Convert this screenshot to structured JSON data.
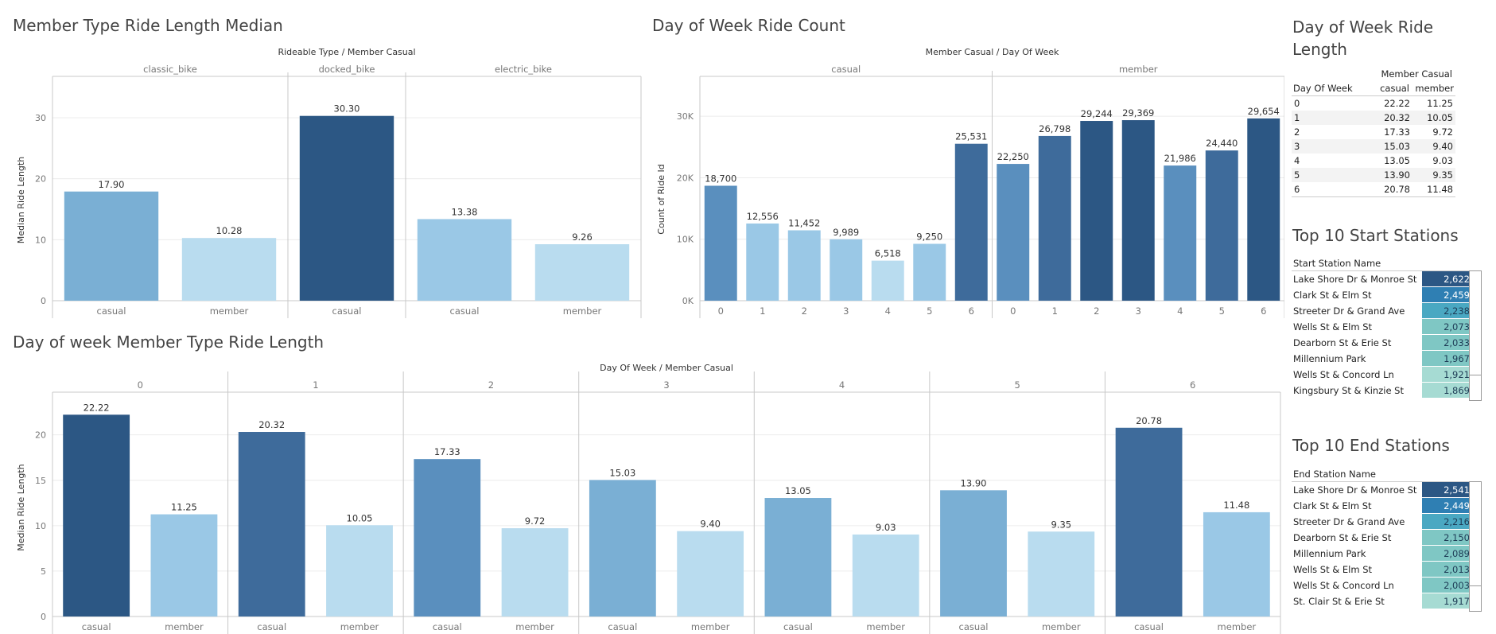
{
  "panels": {
    "member_type": {
      "title": "Member Type Ride Length Median"
    },
    "dow_count": {
      "title": "Day of Week Ride Count"
    },
    "dow_length": {
      "title": "Day of week Member Type Ride Length"
    },
    "dow_table": {
      "title": "Day of Week Ride Length"
    },
    "start_stations": {
      "title": "Top 10 Start Stations"
    },
    "end_stations": {
      "title": "Top 10 End Stations"
    }
  },
  "colors": {
    "ramp": [
      "#b9dcef",
      "#9ac8e6",
      "#7aafd4",
      "#5a8fbe",
      "#3e6b9b",
      "#2c5784"
    ],
    "teal_ramp": [
      "#a6dbd3",
      "#7fc7c4",
      "#4aa8c2",
      "#2f7fb3",
      "#2c5784"
    ],
    "gridline": "#ececec",
    "divider": "#c8c8c8"
  },
  "chart_data": [
    {
      "id": "member_type",
      "type": "bar",
      "title": "Member Type Ride Length Median",
      "column_header": "Rideable Type  /  Member Casual",
      "ylabel": "Median Ride Length",
      "ylim": [
        0,
        33
      ],
      "yticks": [
        0,
        10,
        20,
        30
      ],
      "yticklabels": [
        "0",
        "10",
        "20",
        "30"
      ],
      "groups": [
        {
          "name": "classic_bike",
          "bars": [
            {
              "category": "casual",
              "value": 17.9,
              "label": "17.90"
            },
            {
              "category": "member",
              "value": 10.28,
              "label": "10.28"
            }
          ]
        },
        {
          "name": "docked_bike",
          "bars": [
            {
              "category": "casual",
              "value": 30.3,
              "label": "30.30"
            }
          ]
        },
        {
          "name": "electric_bike",
          "bars": [
            {
              "category": "casual",
              "value": 13.38,
              "label": "13.38"
            },
            {
              "category": "member",
              "value": 9.26,
              "label": "9.26"
            }
          ]
        }
      ]
    },
    {
      "id": "dow_count",
      "type": "bar",
      "title": "Day of Week Ride Count",
      "column_header": "Member Casual  /  Day Of Week",
      "ylabel": "Count of Ride Id",
      "ylim": [
        0,
        33000
      ],
      "yticks": [
        0,
        10000,
        20000,
        30000
      ],
      "yticklabels": [
        "0K",
        "10K",
        "20K",
        "30K"
      ],
      "groups": [
        {
          "name": "casual",
          "bars": [
            {
              "category": "0",
              "value": 18700,
              "label": "18,700"
            },
            {
              "category": "1",
              "value": 12556,
              "label": "12,556"
            },
            {
              "category": "2",
              "value": 11452,
              "label": "11,452"
            },
            {
              "category": "3",
              "value": 9989,
              "label": "9,989"
            },
            {
              "category": "4",
              "value": 6518,
              "label": "6,518"
            },
            {
              "category": "5",
              "value": 9250,
              "label": "9,250"
            },
            {
              "category": "6",
              "value": 25531,
              "label": "25,531"
            }
          ]
        },
        {
          "name": "member",
          "bars": [
            {
              "category": "0",
              "value": 22250,
              "label": "22,250"
            },
            {
              "category": "1",
              "value": 26798,
              "label": "26,798"
            },
            {
              "category": "2",
              "value": 29244,
              "label": "29,244"
            },
            {
              "category": "3",
              "value": 29369,
              "label": "29,369"
            },
            {
              "category": "4",
              "value": 21986,
              "label": "21,986"
            },
            {
              "category": "5",
              "value": 24440,
              "label": "24,440"
            },
            {
              "category": "6",
              "value": 29654,
              "label": "29,654"
            }
          ]
        }
      ]
    },
    {
      "id": "dow_length",
      "type": "bar",
      "title": "Day of week Member Type Ride Length",
      "column_header": "Day Of Week  /  Member Casual",
      "ylabel": "Median Ride Length",
      "ylim": [
        0,
        24
      ],
      "yticks": [
        0,
        5,
        10,
        15,
        20
      ],
      "yticklabels": [
        "0",
        "5",
        "10",
        "15",
        "20"
      ],
      "groups": [
        {
          "name": "0",
          "bars": [
            {
              "category": "casual",
              "value": 22.22,
              "label": "22.22"
            },
            {
              "category": "member",
              "value": 11.25,
              "label": "11.25"
            }
          ]
        },
        {
          "name": "1",
          "bars": [
            {
              "category": "casual",
              "value": 20.32,
              "label": "20.32"
            },
            {
              "category": "member",
              "value": 10.05,
              "label": "10.05"
            }
          ]
        },
        {
          "name": "2",
          "bars": [
            {
              "category": "casual",
              "value": 17.33,
              "label": "17.33"
            },
            {
              "category": "member",
              "value": 9.72,
              "label": "9.72"
            }
          ]
        },
        {
          "name": "3",
          "bars": [
            {
              "category": "casual",
              "value": 15.03,
              "label": "15.03"
            },
            {
              "category": "member",
              "value": 9.4,
              "label": "9.40"
            }
          ]
        },
        {
          "name": "4",
          "bars": [
            {
              "category": "casual",
              "value": 13.05,
              "label": "13.05"
            },
            {
              "category": "member",
              "value": 9.03,
              "label": "9.03"
            }
          ]
        },
        {
          "name": "5",
          "bars": [
            {
              "category": "casual",
              "value": 13.9,
              "label": "13.90"
            },
            {
              "category": "member",
              "value": 9.35,
              "label": "9.35"
            }
          ]
        },
        {
          "name": "6",
          "bars": [
            {
              "category": "casual",
              "value": 20.78,
              "label": "20.78"
            },
            {
              "category": "member",
              "value": 11.48,
              "label": "11.48"
            }
          ]
        }
      ]
    },
    {
      "id": "dow_table",
      "type": "table",
      "title": "Day of Week Ride Length",
      "column_group": "Member Casual",
      "row_header": "Day Of Week",
      "columns": [
        "casual",
        "member"
      ],
      "rows": [
        {
          "day": "0",
          "casual": "22.22",
          "member": "11.25"
        },
        {
          "day": "1",
          "casual": "20.32",
          "member": "10.05"
        },
        {
          "day": "2",
          "casual": "17.33",
          "member": "9.72"
        },
        {
          "day": "3",
          "casual": "15.03",
          "member": "9.40"
        },
        {
          "day": "4",
          "casual": "13.05",
          "member": "9.03"
        },
        {
          "day": "5",
          "casual": "13.90",
          "member": "9.35"
        },
        {
          "day": "6",
          "casual": "20.78",
          "member": "11.48"
        }
      ]
    },
    {
      "id": "start_stations",
      "type": "table",
      "title": "Top 10 Start Stations",
      "row_header": "Start Station Name",
      "rows": [
        {
          "name": "Lake Shore Dr & Monroe St",
          "value": 2622,
          "label": "2,622"
        },
        {
          "name": "Clark St & Elm St",
          "value": 2459,
          "label": "2,459"
        },
        {
          "name": "Streeter Dr & Grand Ave",
          "value": 2238,
          "label": "2,238"
        },
        {
          "name": "Wells St & Elm St",
          "value": 2073,
          "label": "2,073"
        },
        {
          "name": "Dearborn St & Erie St",
          "value": 2033,
          "label": "2,033"
        },
        {
          "name": "Millennium Park",
          "value": 1967,
          "label": "1,967"
        },
        {
          "name": "Wells St & Concord Ln",
          "value": 1921,
          "label": "1,921"
        },
        {
          "name": "Kingsbury St & Kinzie St",
          "value": 1869,
          "label": "1,869"
        }
      ]
    },
    {
      "id": "end_stations",
      "type": "table",
      "title": "Top 10 End Stations",
      "row_header": "End Station Name",
      "rows": [
        {
          "name": "Lake Shore Dr & Monroe St",
          "value": 2541,
          "label": "2,541"
        },
        {
          "name": "Clark St & Elm St",
          "value": 2449,
          "label": "2,449"
        },
        {
          "name": "Streeter Dr & Grand Ave",
          "value": 2216,
          "label": "2,216"
        },
        {
          "name": "Dearborn St & Erie St",
          "value": 2150,
          "label": "2,150"
        },
        {
          "name": "Millennium Park",
          "value": 2089,
          "label": "2,089"
        },
        {
          "name": "Wells St & Elm St",
          "value": 2013,
          "label": "2,013"
        },
        {
          "name": "Wells St & Concord Ln",
          "value": 2003,
          "label": "2,003"
        },
        {
          "name": "St. Clair St & Erie St",
          "value": 1917,
          "label": "1,917"
        }
      ]
    }
  ]
}
